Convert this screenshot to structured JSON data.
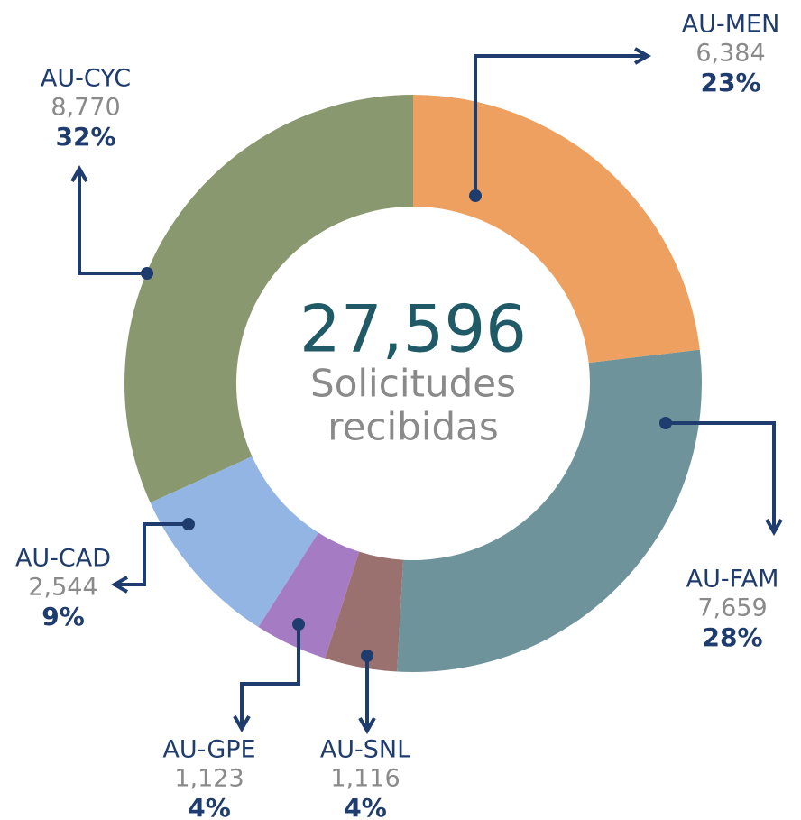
{
  "chart_data": {
    "type": "donut",
    "center_value": "27,596",
    "center_label": [
      "Solicitudes",
      "recibidas"
    ],
    "categories": [
      "AU-MEN",
      "AU-FAM",
      "AU-SNL",
      "AU-GPE",
      "AU-CAD",
      "AU-CYC"
    ],
    "values": [
      6384,
      7659,
      1116,
      1123,
      2544,
      8770
    ],
    "value_labels": [
      "6,384",
      "7,659",
      "1,116",
      "1,123",
      "2,544",
      "8,770"
    ],
    "percent_labels": [
      "23%",
      "28%",
      "4%",
      "4%",
      "9%",
      "32%"
    ],
    "colors": [
      "#eda05f",
      "#6f939b",
      "#9a716e",
      "#a57bc4",
      "#92b5e3",
      "#8a9870"
    ]
  }
}
